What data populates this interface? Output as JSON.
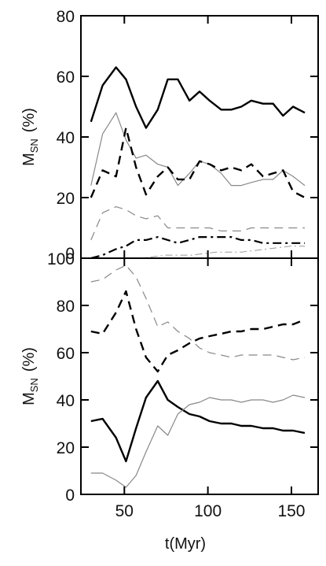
{
  "chart_data": [
    {
      "type": "line",
      "panel": "top",
      "title": "",
      "xlabel": "t(Myr)",
      "ylabel": "M_SN (%)",
      "ylabel_main": "M",
      "ylabel_sub": "SN",
      "ylabel_unit": "(%)",
      "xlim": [
        24,
        166
      ],
      "ylim": [
        0,
        80
      ],
      "xticks": [
        50,
        100,
        150
      ],
      "xtick_labels": [],
      "yticks": [
        0,
        20,
        40,
        60,
        80
      ],
      "ytick_labels": [
        "0",
        "20",
        "40",
        "60",
        "80"
      ],
      "grid": false,
      "legend": "none",
      "series": [
        {
          "style": "thick-solid",
          "color": "#000000",
          "x": [
            30,
            37,
            45,
            51,
            57,
            63,
            70,
            76,
            82,
            89,
            95,
            101,
            108,
            114,
            120,
            126,
            133,
            139,
            145,
            151,
            158
          ],
          "y": [
            45,
            57,
            63,
            59,
            50,
            43,
            49,
            59,
            59,
            52,
            55,
            52,
            49,
            49,
            50,
            52,
            51,
            51,
            47,
            50,
            48
          ]
        },
        {
          "style": "thin-solid",
          "color": "#888888",
          "x": [
            30,
            37,
            45,
            51,
            57,
            63,
            70,
            76,
            82,
            89,
            95,
            101,
            108,
            114,
            120,
            126,
            133,
            139,
            145,
            151,
            158
          ],
          "y": [
            24,
            41,
            48,
            39,
            33,
            34,
            31,
            30,
            24,
            28,
            32,
            31,
            28,
            24,
            24,
            25,
            26,
            26,
            29,
            27,
            24
          ]
        },
        {
          "style": "thick-dashed",
          "color": "#000000",
          "x": [
            30,
            37,
            45,
            51,
            57,
            63,
            70,
            76,
            82,
            89,
            95,
            101,
            108,
            114,
            120,
            126,
            133,
            139,
            145,
            151,
            158
          ],
          "y": [
            20,
            29,
            27,
            43,
            30,
            21,
            27,
            30,
            26,
            26,
            32,
            31,
            29,
            30,
            29,
            31,
            27,
            28,
            29,
            22,
            20
          ]
        },
        {
          "style": "thin-dashed",
          "color": "#888888",
          "x": [
            30,
            37,
            45,
            51,
            57,
            63,
            70,
            76,
            82,
            89,
            95,
            101,
            108,
            114,
            120,
            126,
            133,
            139,
            145,
            151,
            158
          ],
          "y": [
            6,
            15,
            17,
            16,
            14,
            13,
            14,
            10,
            10,
            10,
            10,
            10,
            9,
            9,
            9,
            10,
            10,
            10,
            10,
            10,
            10
          ]
        },
        {
          "style": "dash-dot",
          "color": "#000000",
          "x": [
            30,
            37,
            45,
            51,
            57,
            63,
            70,
            76,
            82,
            89,
            95,
            101,
            108,
            114,
            120,
            126,
            133,
            139,
            145,
            151,
            158
          ],
          "y": [
            0,
            1,
            3,
            4,
            6,
            6,
            7,
            6,
            5,
            6,
            7,
            7,
            7,
            7,
            6,
            6,
            5,
            5,
            5,
            5,
            5
          ]
        },
        {
          "style": "thin-dash-dot",
          "color": "#999999",
          "x": [
            30,
            45,
            60,
            75,
            90,
            105,
            120,
            135,
            150,
            158
          ],
          "y": [
            0,
            0,
            0,
            1,
            1,
            2,
            2,
            3,
            4,
            4
          ]
        }
      ]
    },
    {
      "type": "line",
      "panel": "bottom",
      "title": "",
      "xlabel": "t(Myr)",
      "ylabel": "M_SN (%)",
      "ylabel_main": "M",
      "ylabel_sub": "SN",
      "ylabel_unit": "(%)",
      "xlim": [
        24,
        166
      ],
      "ylim": [
        0,
        100
      ],
      "xticks": [
        50,
        100,
        150
      ],
      "xtick_labels": [
        "50",
        "100",
        "150"
      ],
      "yticks": [
        0,
        20,
        40,
        60,
        80,
        100
      ],
      "ytick_labels": [
        "0",
        "20",
        "40",
        "60",
        "80",
        "100"
      ],
      "grid": false,
      "legend": "none",
      "series": [
        {
          "style": "thin-dashed",
          "color": "#888888",
          "x": [
            30,
            37,
            45,
            51,
            57,
            63,
            70,
            76,
            82,
            89,
            95,
            101,
            108,
            114,
            120,
            126,
            133,
            139,
            145,
            151,
            158
          ],
          "y": [
            90,
            91,
            95,
            97,
            92,
            83,
            71,
            73,
            69,
            66,
            62,
            60,
            59,
            58,
            59,
            59,
            59,
            59,
            58,
            57,
            58
          ]
        },
        {
          "style": "thick-dashed",
          "color": "#000000",
          "x": [
            30,
            37,
            45,
            51,
            57,
            63,
            70,
            76,
            82,
            89,
            95,
            101,
            108,
            114,
            120,
            126,
            133,
            139,
            145,
            151,
            158
          ],
          "y": [
            69,
            68,
            77,
            86,
            70,
            58,
            52,
            59,
            61,
            64,
            66,
            67,
            68,
            69,
            69,
            70,
            70,
            71,
            72,
            72,
            74
          ]
        },
        {
          "style": "thick-solid",
          "color": "#000000",
          "x": [
            30,
            37,
            45,
            51,
            57,
            63,
            70,
            76,
            82,
            89,
            95,
            101,
            108,
            114,
            120,
            126,
            133,
            139,
            145,
            151,
            158
          ],
          "y": [
            31,
            32,
            24,
            14,
            28,
            41,
            48,
            40,
            37,
            34,
            33,
            31,
            30,
            30,
            29,
            29,
            28,
            28,
            27,
            27,
            26
          ]
        },
        {
          "style": "thin-solid",
          "color": "#888888",
          "x": [
            30,
            37,
            45,
            51,
            57,
            63,
            70,
            76,
            82,
            89,
            95,
            101,
            108,
            114,
            120,
            126,
            133,
            139,
            145,
            151,
            158
          ],
          "y": [
            9,
            9,
            6,
            3,
            8,
            18,
            29,
            25,
            34,
            38,
            39,
            41,
            40,
            40,
            39,
            40,
            40,
            39,
            40,
            42,
            41
          ]
        }
      ]
    }
  ]
}
